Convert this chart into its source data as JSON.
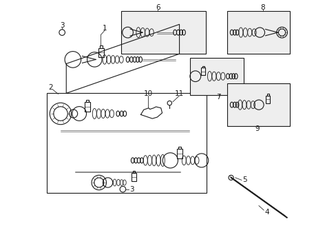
{
  "bg_color": "#ffffff",
  "line_color": "#1a1a1a",
  "box_fill": "#eeeeee",
  "lw": 0.8
}
